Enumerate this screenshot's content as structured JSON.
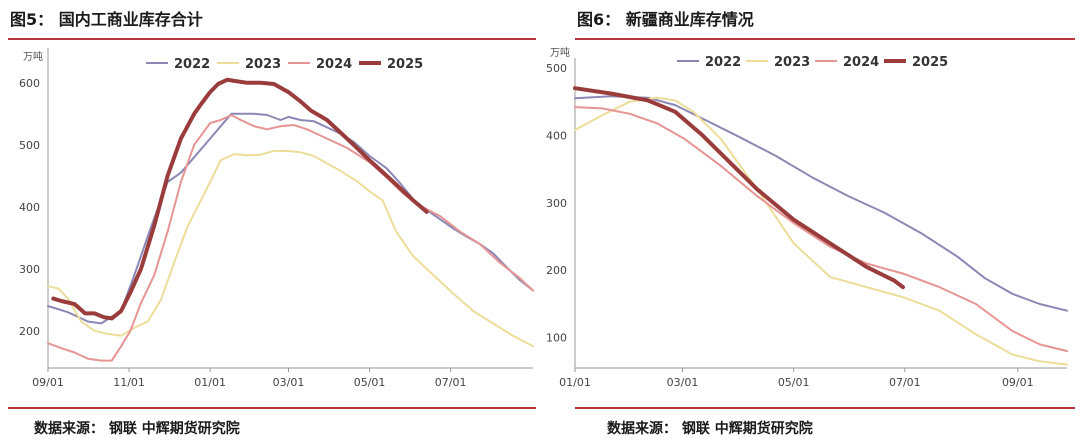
{
  "left_panel": {
    "title": "图5： 国内工商业库存合计",
    "source": "数据来源： 钢联 中辉期货研究院"
  },
  "right_panel": {
    "title": "图6： 新疆商业库存情况",
    "source": "数据来源： 钢联 中辉期货研究院"
  },
  "colors": {
    "2022": "#8b88b5",
    "2023": "#ecdd9a",
    "2024": "#e69494",
    "2025": "#9a3c3c",
    "rule": "#b7343a"
  },
  "chart_data": [
    {
      "type": "line",
      "title": "",
      "unit_label": "万吨",
      "xlabel": "",
      "ylabel": "",
      "x_tick_labels": [
        "09/01",
        "11/01",
        "01/01",
        "03/01",
        "05/01",
        "07/01"
      ],
      "x_ticks": [
        0,
        61,
        122,
        181,
        242,
        303
      ],
      "xlim": [
        0,
        365
      ],
      "y_ticks": [
        200,
        300,
        400,
        500,
        600
      ],
      "ylim": [
        140,
        640
      ],
      "legend": "top-center",
      "grid": false,
      "series": [
        {
          "name": "2022",
          "x": [
            0,
            15,
            30,
            40,
            55,
            65,
            78,
            90,
            100,
            110,
            122,
            130,
            138,
            145,
            155,
            165,
            175,
            181,
            190,
            200,
            210,
            220,
            230,
            242,
            255,
            265,
            275,
            285,
            295,
            305,
            315,
            325,
            335,
            345,
            355,
            365
          ],
          "values": [
            240,
            230,
            215,
            212,
            232,
            290,
            370,
            440,
            455,
            480,
            510,
            530,
            550,
            550,
            550,
            548,
            540,
            545,
            540,
            538,
            528,
            518,
            505,
            482,
            462,
            438,
            412,
            395,
            380,
            365,
            352,
            340,
            325,
            303,
            282,
            265
          ]
        },
        {
          "name": "2023",
          "x": [
            0,
            8,
            15,
            25,
            35,
            45,
            55,
            65,
            75,
            85,
            95,
            105,
            115,
            122,
            130,
            140,
            150,
            160,
            170,
            181,
            190,
            200,
            210,
            220,
            232,
            242,
            252,
            262,
            275,
            290,
            305,
            320,
            335,
            350,
            365
          ],
          "values": [
            272,
            268,
            252,
            215,
            200,
            195,
            192,
            205,
            215,
            250,
            310,
            368,
            410,
            440,
            475,
            485,
            483,
            484,
            490,
            490,
            488,
            482,
            470,
            458,
            442,
            425,
            410,
            360,
            320,
            290,
            260,
            232,
            212,
            192,
            175
          ]
        },
        {
          "name": "2024",
          "x": [
            0,
            10,
            20,
            30,
            40,
            48,
            55,
            62,
            70,
            80,
            90,
            100,
            110,
            122,
            130,
            138,
            145,
            155,
            165,
            175,
            185,
            195,
            205,
            215,
            225,
            242,
            255,
            268,
            280,
            295,
            310,
            325,
            340,
            355,
            365
          ],
          "values": [
            180,
            172,
            165,
            155,
            152,
            152,
            175,
            200,
            245,
            290,
            360,
            440,
            500,
            535,
            540,
            548,
            540,
            530,
            525,
            530,
            532,
            525,
            515,
            505,
            495,
            472,
            447,
            420,
            402,
            385,
            360,
            340,
            310,
            285,
            265
          ]
        },
        {
          "name": "2025",
          "x": [
            4,
            10,
            20,
            28,
            35,
            42,
            48,
            55,
            62,
            70,
            80,
            90,
            100,
            110,
            115,
            122,
            128,
            135,
            140,
            150,
            160,
            170,
            181,
            190,
            198,
            210,
            220,
            230,
            242,
            255,
            265,
            275,
            285
          ],
          "values": [
            252,
            248,
            243,
            228,
            228,
            222,
            220,
            232,
            262,
            300,
            370,
            450,
            510,
            550,
            565,
            585,
            598,
            605,
            603,
            600,
            600,
            598,
            585,
            570,
            555,
            540,
            520,
            500,
            475,
            450,
            430,
            410,
            392
          ]
        }
      ]
    },
    {
      "type": "line",
      "title": "",
      "unit_label": "万吨",
      "xlabel": "",
      "ylabel": "",
      "x_tick_labels": [
        "01/01",
        "03/01",
        "05/01",
        "07/01",
        "09/01"
      ],
      "x_ticks": [
        0,
        59,
        120,
        181,
        243
      ],
      "xlim": [
        0,
        270
      ],
      "y_ticks": [
        100,
        200,
        300,
        400,
        500
      ],
      "ylim": [
        55,
        500
      ],
      "legend": "top-center",
      "grid": false,
      "series": [
        {
          "name": "2022",
          "x": [
            0,
            20,
            40,
            55,
            70,
            90,
            110,
            130,
            150,
            170,
            190,
            210,
            225,
            240,
            255,
            270
          ],
          "values": [
            455,
            458,
            456,
            445,
            425,
            398,
            370,
            338,
            310,
            285,
            255,
            220,
            188,
            165,
            150,
            140
          ]
        },
        {
          "name": "2023",
          "x": [
            0,
            15,
            30,
            45,
            55,
            65,
            80,
            100,
            120,
            140,
            160,
            180,
            200,
            220,
            240,
            255,
            270
          ],
          "values": [
            408,
            430,
            450,
            456,
            452,
            435,
            395,
            320,
            240,
            190,
            175,
            160,
            140,
            105,
            75,
            65,
            60
          ]
        },
        {
          "name": "2024",
          "x": [
            0,
            15,
            30,
            45,
            60,
            80,
            100,
            120,
            140,
            160,
            180,
            200,
            220,
            240,
            255,
            270
          ],
          "values": [
            442,
            440,
            432,
            418,
            395,
            355,
            310,
            270,
            235,
            210,
            195,
            175,
            150,
            110,
            90,
            80
          ]
        },
        {
          "name": "2025",
          "x": [
            0,
            20,
            40,
            55,
            70,
            85,
            100,
            120,
            140,
            160,
            175,
            180
          ],
          "values": [
            470,
            462,
            452,
            435,
            400,
            360,
            320,
            275,
            240,
            205,
            185,
            175
          ]
        }
      ]
    }
  ]
}
